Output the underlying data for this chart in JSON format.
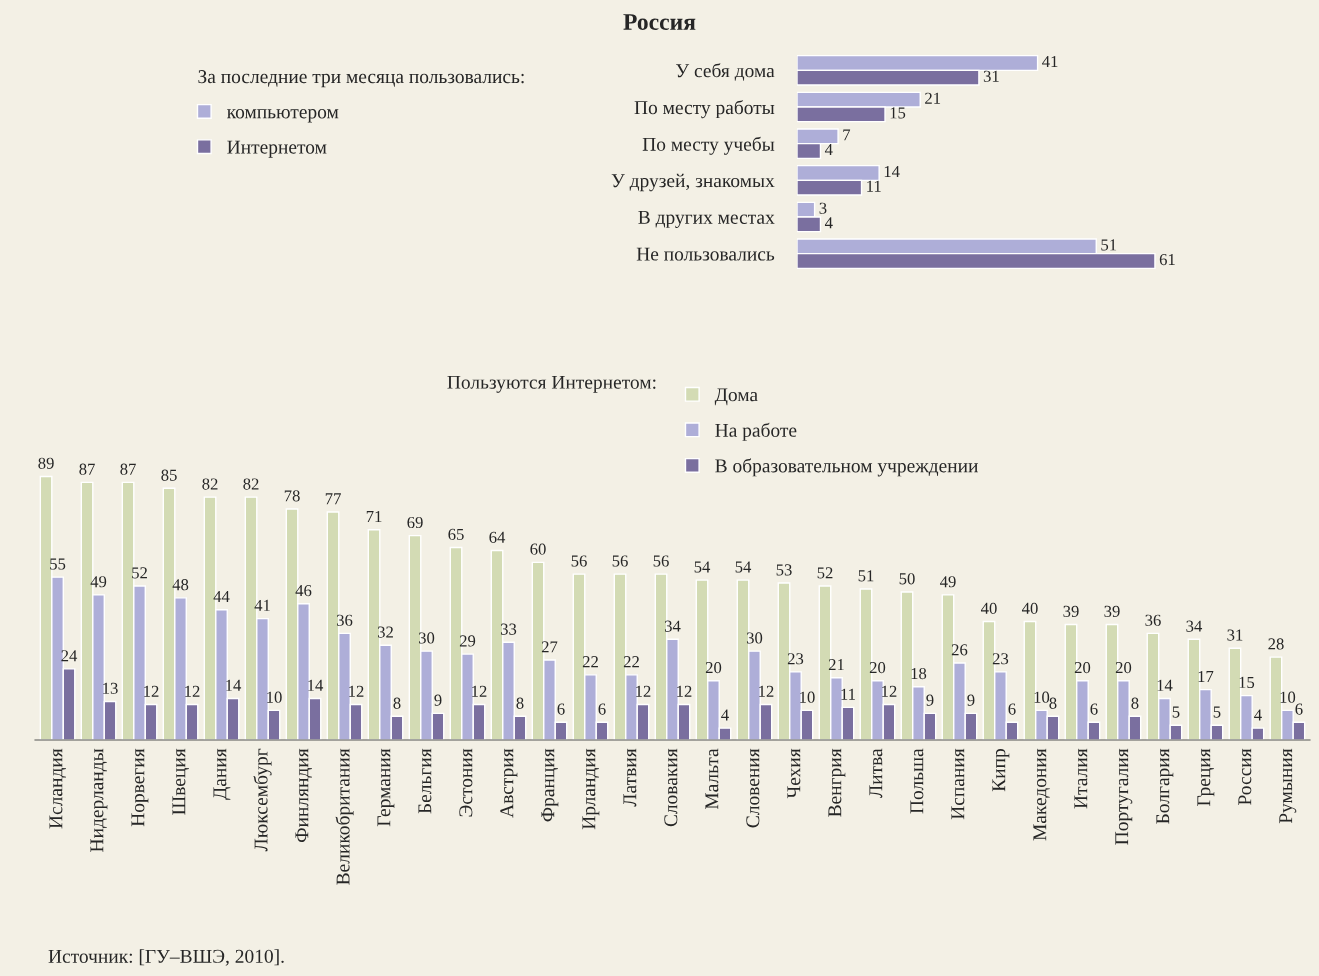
{
  "chart_data": [
    {
      "type": "bar",
      "orientation": "horizontal",
      "title": "Россия",
      "legend_title": "За последние три месяца пользовались:",
      "legend": "left",
      "categories": [
        "У себя дома",
        "По месту работы",
        "По месту учебы",
        "У друзей, знакомых",
        "В других местах",
        "Не пользовались"
      ],
      "series": [
        {
          "name": "компьютером",
          "color": "#aeaed8",
          "values": [
            41,
            21,
            7,
            14,
            3,
            51
          ]
        },
        {
          "name": "Интернетом",
          "color": "#7a6f9f",
          "values": [
            31,
            15,
            4,
            11,
            4,
            61
          ]
        }
      ],
      "data_labels": true,
      "grid": false
    },
    {
      "type": "bar",
      "legend_title": "Пользуются Интернетом:",
      "legend": "top",
      "categories": [
        "Исландия",
        "Нидерланды",
        "Норвегия",
        "Швеция",
        "Дания",
        "Люксембург",
        "Финляндия",
        "Великобритания",
        "Германия",
        "Бельгия",
        "Эстония",
        "Австрия",
        "Франция",
        "Ирландия",
        "Латвия",
        "Словакия",
        "Мальта",
        "Словения",
        "Чехия",
        "Венгрия",
        "Литва",
        "Польша",
        "Испания",
        "Кипр",
        "Македония",
        "Италия",
        "Португалия",
        "Болгария",
        "Греция",
        "Россия",
        "Румыния"
      ],
      "series": [
        {
          "name": "Дома",
          "color": "#d3dbb4",
          "values": [
            89,
            87,
            87,
            85,
            82,
            82,
            78,
            77,
            71,
            69,
            65,
            64,
            60,
            56,
            56,
            56,
            54,
            54,
            53,
            52,
            51,
            50,
            49,
            40,
            40,
            39,
            39,
            36,
            34,
            31,
            28
          ]
        },
        {
          "name": "На работе",
          "color": "#aeaed8",
          "values": [
            55,
            49,
            52,
            48,
            44,
            41,
            46,
            36,
            32,
            30,
            29,
            33,
            27,
            22,
            22,
            34,
            20,
            30,
            23,
            21,
            20,
            18,
            26,
            23,
            10,
            20,
            20,
            14,
            17,
            15,
            10
          ]
        },
        {
          "name": "В образовательном учреждении",
          "color": "#7a6f9f",
          "values": [
            24,
            13,
            12,
            12,
            14,
            10,
            14,
            12,
            8,
            9,
            12,
            8,
            6,
            6,
            12,
            12,
            4,
            12,
            10,
            11,
            12,
            9,
            9,
            6,
            8,
            6,
            8,
            5,
            5,
            4,
            6
          ]
        }
      ],
      "data_labels": true,
      "grid": false,
      "annotations": [
        "Источник: [ГУ–ВШЭ, 2010]."
      ]
    }
  ]
}
